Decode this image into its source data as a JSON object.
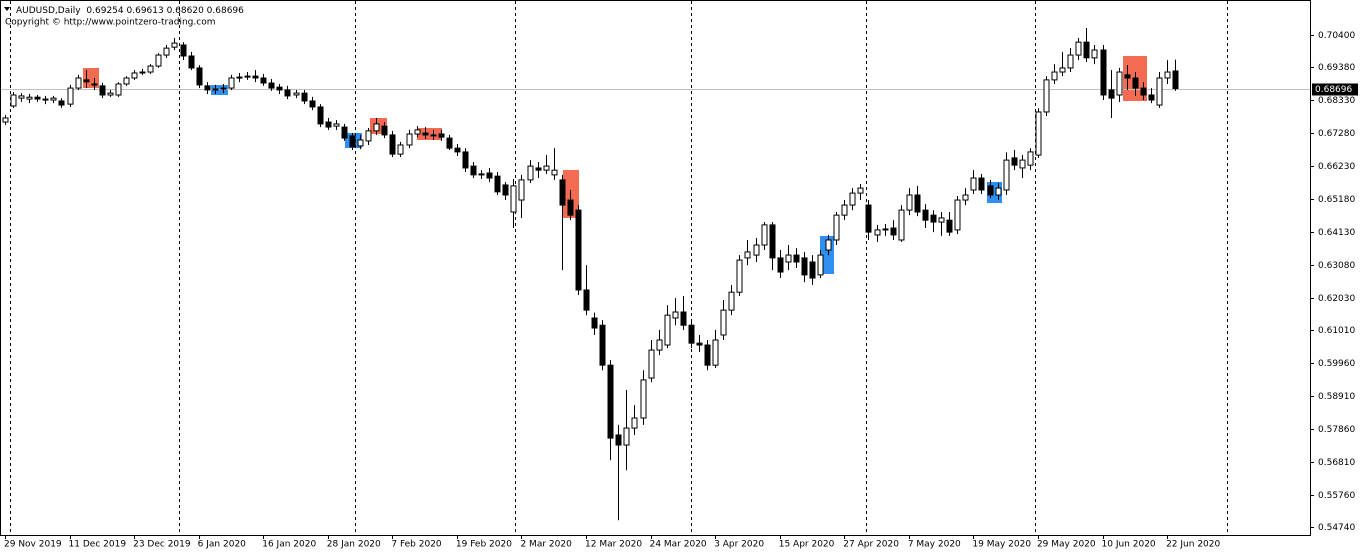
{
  "chart_data": {
    "type": "candlestick",
    "symbol": "AUDUSD,Daily",
    "ohlc_text": "0.69254 0.69613 0.68620 0.68696",
    "copyright": "Copyright © http://www.pointzero-trading.com",
    "categories": [
      "29 Nov 2019",
      null,
      null,
      null,
      null,
      null,
      null,
      null,
      "11 Dec 2019",
      null,
      null,
      null,
      null,
      null,
      null,
      null,
      "23 Dec 2019",
      null,
      null,
      null,
      null,
      null,
      null,
      null,
      "6 Jan 2020",
      null,
      null,
      null,
      null,
      null,
      null,
      null,
      "16 Jan 2020",
      null,
      null,
      null,
      null,
      null,
      null,
      null,
      "28 Jan 2020",
      null,
      null,
      null,
      null,
      null,
      null,
      null,
      "7 Feb 2020",
      null,
      null,
      null,
      null,
      null,
      null,
      null,
      "19 Feb 2020",
      null,
      null,
      null,
      null,
      null,
      null,
      null,
      "2 Mar 2020",
      null,
      null,
      null,
      null,
      null,
      null,
      null,
      "12 Mar 2020",
      null,
      null,
      null,
      null,
      null,
      null,
      null,
      "24 Mar 2020",
      null,
      null,
      null,
      null,
      null,
      null,
      null,
      "3 Apr 2020",
      null,
      null,
      null,
      null,
      null,
      null,
      null,
      "15 Apr 2020",
      null,
      null,
      null,
      null,
      null,
      null,
      null,
      "27 Apr 2020",
      null,
      null,
      null,
      null,
      null,
      null,
      null,
      "7 May 2020",
      null,
      null,
      null,
      null,
      null,
      null,
      null,
      "19 May 2020",
      null,
      null,
      null,
      null,
      null,
      null,
      null,
      "29 May 2020",
      null,
      null,
      null,
      null,
      null,
      null,
      null,
      "10 Jun 2020",
      null,
      null,
      null,
      null,
      null,
      null,
      null,
      "22 Jun 2020",
      null
    ],
    "open": [
      0.6763,
      0.6814,
      0.6839,
      0.6836,
      0.6842,
      0.6836,
      0.6833,
      0.683,
      0.682,
      0.6871,
      0.6897,
      0.6884,
      0.6878,
      0.6849,
      0.6849,
      0.6884,
      0.6903,
      0.6919,
      0.6922,
      0.6941,
      0.6976,
      0.7001,
      0.7008,
      0.6973,
      0.6935,
      0.6878,
      0.6865,
      0.6868,
      0.6871,
      0.6903,
      0.6906,
      0.6909,
      0.6903,
      0.6887,
      0.6874,
      0.6865,
      0.6849,
      0.6855,
      0.683,
      0.6811,
      0.6763,
      0.675,
      0.6747,
      0.6719,
      0.6687,
      0.6703,
      0.6735,
      0.675,
      0.6722,
      0.6661,
      0.669,
      0.6725,
      0.6728,
      0.6722,
      0.6725,
      0.6712,
      0.668,
      0.6668,
      0.6623,
      0.6595,
      0.6601,
      0.6591,
      0.6563,
      0.6477,
      0.6515,
      0.6579,
      0.6617,
      0.661,
      0.6595,
      0.6579,
      0.6515,
      0.6483,
      0.6229,
      0.614,
      0.6117,
      0.599,
      0.5768,
      0.5736,
      0.579,
      0.5822,
      0.5949,
      0.6038,
      0.6054,
      0.614,
      0.6159,
      0.6117,
      0.606,
      0.6054,
      0.599,
      0.6086,
      0.6165,
      0.6222,
      0.6331,
      0.634,
      0.6372,
      0.6436,
      0.6331,
      0.6318,
      0.634,
      0.6331,
      0.6318,
      0.6277,
      0.6356,
      0.6388,
      0.6467,
      0.6499,
      0.6537,
      0.6499,
      0.6404,
      0.642,
      0.6426,
      0.6388,
      0.6483,
      0.6531,
      0.6483,
      0.6467,
      0.6445,
      0.6451,
      0.642,
      0.6515,
      0.6547,
      0.6585,
      0.656,
      0.6531,
      0.6547,
      0.6649,
      0.6617,
      0.6626,
      0.6658,
      0.6795,
      0.6897,
      0.6922,
      0.6935,
      0.6976,
      0.7017,
      0.6967,
      0.6992,
      0.6865,
      0.6849,
      0.6913,
      0.6903,
      0.6871,
      0.6849,
      0.6817,
      0.6903,
      0.69254
    ],
    "high": [
      0.6785,
      0.6858,
      0.6855,
      0.6852,
      0.6849,
      0.6846,
      0.6846,
      0.6839,
      0.6881,
      0.6913,
      0.6928,
      0.6903,
      0.6887,
      0.6865,
      0.689,
      0.6909,
      0.6928,
      0.6932,
      0.6947,
      0.6982,
      0.7008,
      0.703,
      0.7017,
      0.6986,
      0.6944,
      0.689,
      0.6881,
      0.6884,
      0.6913,
      0.6919,
      0.6922,
      0.6928,
      0.6916,
      0.69,
      0.6884,
      0.6878,
      0.6865,
      0.6865,
      0.6843,
      0.682,
      0.6776,
      0.6769,
      0.6757,
      0.6728,
      0.6722,
      0.6744,
      0.6776,
      0.6763,
      0.6735,
      0.67,
      0.6738,
      0.675,
      0.6747,
      0.6738,
      0.6738,
      0.6722,
      0.6693,
      0.668,
      0.6636,
      0.661,
      0.6617,
      0.6604,
      0.6572,
      0.6582,
      0.6595,
      0.6642,
      0.6636,
      0.6658,
      0.668,
      0.6595,
      0.6547,
      0.6499,
      0.6308,
      0.6157,
      0.6133,
      0.6006,
      0.58,
      0.5911,
      0.5863,
      0.5974,
      0.607,
      0.6102,
      0.6181,
      0.6203,
      0.621,
      0.6133,
      0.6086,
      0.607,
      0.6102,
      0.6197,
      0.6245,
      0.634,
      0.6388,
      0.6394,
      0.6445,
      0.6445,
      0.6356,
      0.6372,
      0.6362,
      0.635,
      0.634,
      0.6356,
      0.6404,
      0.6477,
      0.6515,
      0.6553,
      0.6566,
      0.6515,
      0.6436,
      0.6439,
      0.6451,
      0.6499,
      0.6553,
      0.656,
      0.6502,
      0.6483,
      0.6477,
      0.6477,
      0.6528,
      0.6553,
      0.661,
      0.6598,
      0.6579,
      0.6569,
      0.6667,
      0.6674,
      0.6658,
      0.668,
      0.6807,
      0.6909,
      0.6947,
      0.6986,
      0.6998,
      0.703,
      0.7062,
      0.7008,
      0.7008,
      0.6928,
      0.6935,
      0.6944,
      0.6922,
      0.689,
      0.6871,
      0.6922,
      0.696,
      0.69613
    ],
    "low": [
      0.6754,
      0.6808,
      0.6827,
      0.6823,
      0.6827,
      0.682,
      0.6823,
      0.6808,
      0.6811,
      0.6865,
      0.6871,
      0.6865,
      0.6839,
      0.6843,
      0.6843,
      0.6878,
      0.6897,
      0.6913,
      0.6916,
      0.6935,
      0.6967,
      0.6992,
      0.696,
      0.6928,
      0.6871,
      0.6852,
      0.6852,
      0.6855,
      0.6865,
      0.689,
      0.6897,
      0.689,
      0.6878,
      0.6862,
      0.6852,
      0.6836,
      0.6839,
      0.682,
      0.6801,
      0.6747,
      0.6738,
      0.6738,
      0.6703,
      0.6674,
      0.6677,
      0.669,
      0.6722,
      0.6712,
      0.6652,
      0.6652,
      0.668,
      0.6715,
      0.6709,
      0.6706,
      0.6703,
      0.6674,
      0.6655,
      0.6604,
      0.6585,
      0.6582,
      0.6572,
      0.6531,
      0.6515,
      0.6426,
      0.6458,
      0.6569,
      0.6585,
      0.6598,
      0.6579,
      0.6292,
      0.6451,
      0.6213,
      0.6149,
      0.6086,
      0.5974,
      0.5688,
      0.5497,
      0.5656,
      0.5768,
      0.58,
      0.5936,
      0.6022,
      0.6044,
      0.6117,
      0.6102,
      0.6044,
      0.6032,
      0.5974,
      0.5981,
      0.607,
      0.6149,
      0.621,
      0.6308,
      0.6318,
      0.6356,
      0.6292,
      0.6267,
      0.6292,
      0.6299,
      0.6254,
      0.6245,
      0.6267,
      0.634,
      0.6372,
      0.6451,
      0.6483,
      0.6515,
      0.6388,
      0.6382,
      0.6401,
      0.6388,
      0.6382,
      0.6467,
      0.6464,
      0.6426,
      0.6413,
      0.6401,
      0.6401,
      0.6407,
      0.6499,
      0.6534,
      0.6534,
      0.6521,
      0.6515,
      0.6531,
      0.661,
      0.6585,
      0.661,
      0.6649,
      0.6782,
      0.6884,
      0.6909,
      0.6922,
      0.696,
      0.6954,
      0.6947,
      0.6833,
      0.6776,
      0.6827,
      0.6865,
      0.6846,
      0.6833,
      0.6823,
      0.6808,
      0.6884,
      0.6862
    ],
    "close": [
      0.6776,
      0.6849,
      0.6846,
      0.6842,
      0.6836,
      0.6833,
      0.6839,
      0.6817,
      0.6871,
      0.6903,
      0.6891,
      0.6884,
      0.6849,
      0.6855,
      0.6884,
      0.6903,
      0.6919,
      0.6922,
      0.6941,
      0.6976,
      0.6998,
      0.7014,
      0.6973,
      0.6935,
      0.6881,
      0.6865,
      0.6868,
      0.6871,
      0.6903,
      0.6906,
      0.6909,
      0.6903,
      0.6887,
      0.6871,
      0.6865,
      0.6846,
      0.6855,
      0.683,
      0.6811,
      0.6757,
      0.6747,
      0.6757,
      0.6712,
      0.6684,
      0.6706,
      0.6735,
      0.6757,
      0.6722,
      0.6661,
      0.669,
      0.6725,
      0.6738,
      0.6722,
      0.6719,
      0.6715,
      0.668,
      0.6668,
      0.6617,
      0.6595,
      0.6598,
      0.6585,
      0.6541,
      0.6531,
      0.656,
      0.6579,
      0.6623,
      0.661,
      0.6623,
      0.661,
      0.6499,
      0.6467,
      0.6229,
      0.6165,
      0.6108,
      0.599,
      0.5758,
      0.5736,
      0.579,
      0.5822,
      0.5943,
      0.6038,
      0.607,
      0.6149,
      0.6159,
      0.6117,
      0.606,
      0.6054,
      0.599,
      0.607,
      0.6165,
      0.6222,
      0.6324,
      0.635,
      0.6372,
      0.6436,
      0.6331,
      0.6286,
      0.634,
      0.6318,
      0.6277,
      0.6267,
      0.634,
      0.6388,
      0.6467,
      0.6499,
      0.6537,
      0.6553,
      0.6413,
      0.642,
      0.6423,
      0.6404,
      0.6483,
      0.6531,
      0.6477,
      0.6451,
      0.6445,
      0.6458,
      0.6413,
      0.6515,
      0.6531,
      0.6585,
      0.6547,
      0.6531,
      0.6553,
      0.6642,
      0.6626,
      0.6642,
      0.6668,
      0.6795,
      0.6897,
      0.6922,
      0.6935,
      0.6976,
      0.7017,
      0.6967,
      0.6992,
      0.6849,
      0.6839,
      0.6922,
      0.6903,
      0.6871,
      0.6849,
      0.6833,
      0.6903,
      0.6922,
      0.68696
    ],
    "current_price": 0.68696,
    "ylim": [
      0.545,
      0.7151
    ],
    "yticks": [
      {
        "value": 0.704,
        "label": "0.70400"
      },
      {
        "value": 0.6938,
        "label": "0.69380"
      },
      {
        "value": 0.6833,
        "label": "0.68330"
      },
      {
        "value": 0.6728,
        "label": "0.67280"
      },
      {
        "value": 0.6623,
        "label": "0.66230"
      },
      {
        "value": 0.6518,
        "label": "0.65180"
      },
      {
        "value": 0.6413,
        "label": "0.64130"
      },
      {
        "value": 0.6308,
        "label": "0.63080"
      },
      {
        "value": 0.6203,
        "label": "0.62030"
      },
      {
        "value": 0.6101,
        "label": "0.61010"
      },
      {
        "value": 0.5996,
        "label": "0.59960"
      },
      {
        "value": 0.5891,
        "label": "0.58910"
      },
      {
        "value": 0.5786,
        "label": "0.57860"
      },
      {
        "value": 0.5681,
        "label": "0.56810"
      },
      {
        "value": 0.5576,
        "label": "0.55760"
      },
      {
        "value": 0.5474,
        "label": "0.54740"
      }
    ],
    "up_color": "#ffffff",
    "down_color": "#000000",
    "wick_color": "#000000",
    "price_line_color": "#c0c0c0"
  }
}
